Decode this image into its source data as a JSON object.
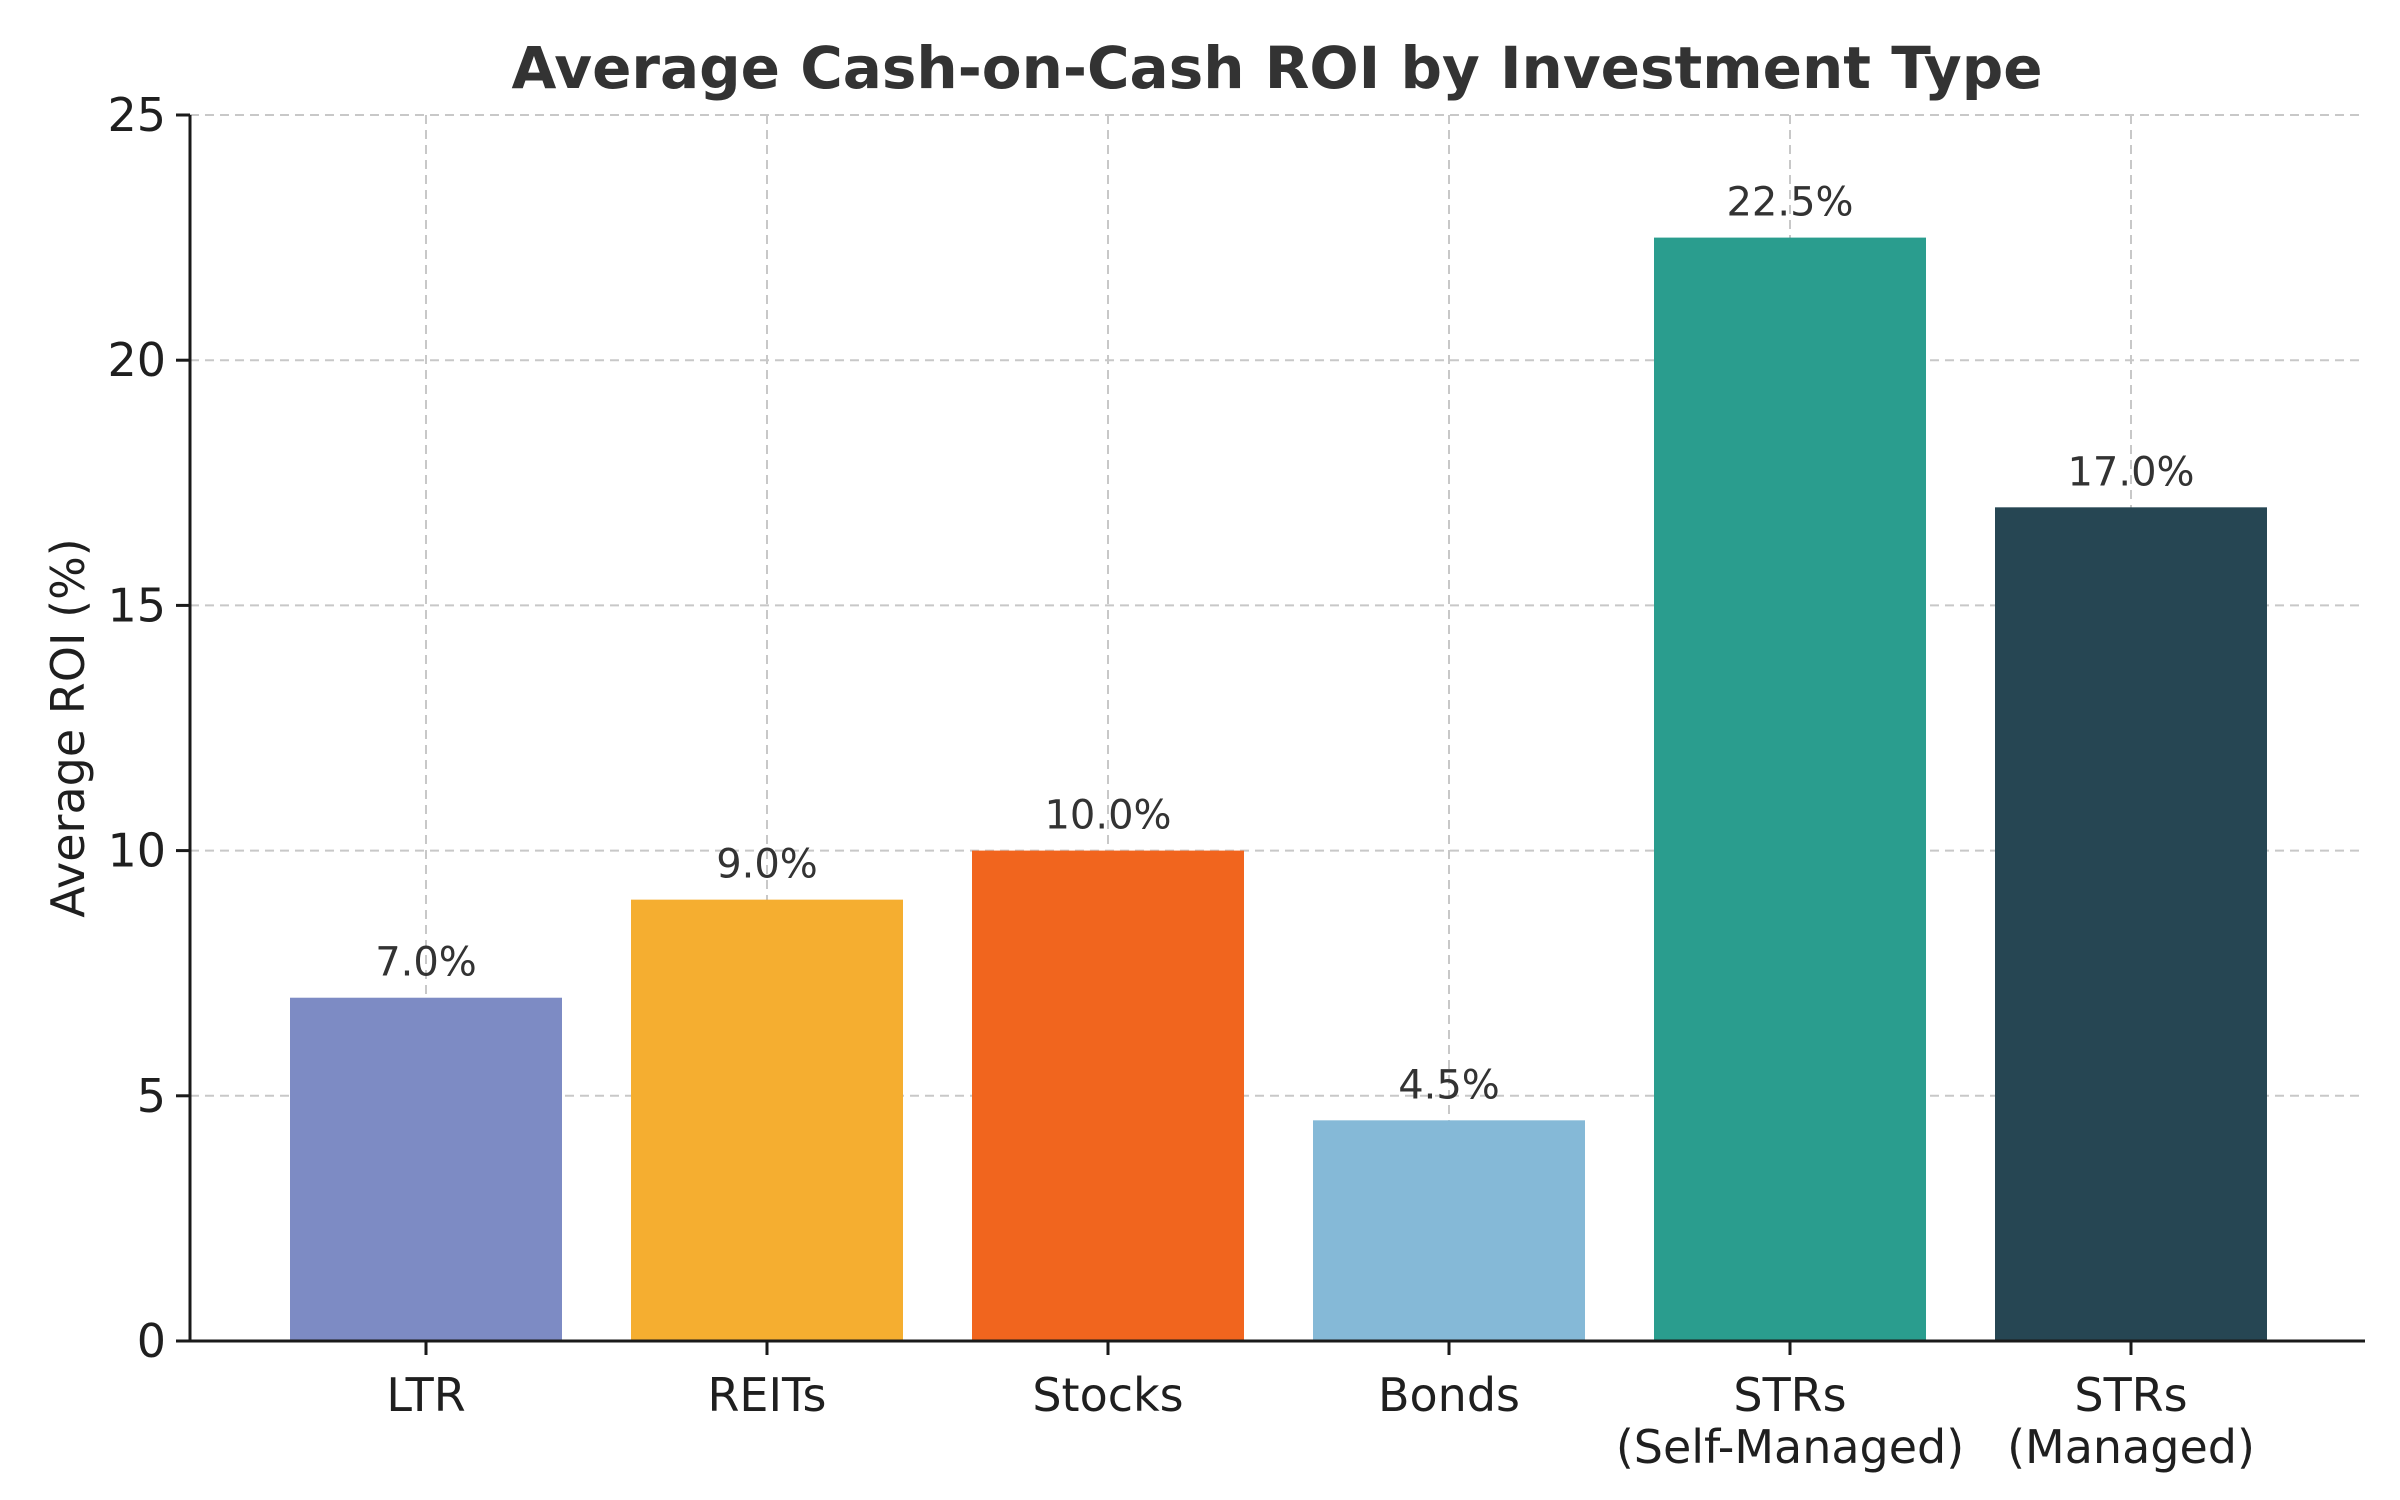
{
  "chart_data": {
    "type": "bar",
    "title": "Average Cash-on-Cash ROI by Investment Type",
    "xlabel": "",
    "ylabel": "Average ROI (%)",
    "ylim": [
      0,
      25
    ],
    "yticks": [
      0,
      5,
      10,
      15,
      20,
      25
    ],
    "ytick_labels": [
      "0",
      "5",
      "10",
      "15",
      "20",
      "25"
    ],
    "grid": true,
    "categories": [
      [
        "LTR"
      ],
      [
        "REITs"
      ],
      [
        "Stocks"
      ],
      [
        "Bonds"
      ],
      [
        "STRs",
        "(Self-Managed)"
      ],
      [
        "STRs",
        "(Managed)"
      ]
    ],
    "values": [
      7.0,
      9.0,
      10.0,
      4.5,
      22.5,
      17.0
    ],
    "value_labels": [
      "7.0%",
      "9.0%",
      "10.0%",
      "4.5%",
      "22.5%",
      "17.0%"
    ],
    "colors": [
      "#7d8bc4",
      "#f5ae30",
      "#f1651e",
      "#85b9d7",
      "#2a9d8e",
      "#264653"
    ]
  }
}
